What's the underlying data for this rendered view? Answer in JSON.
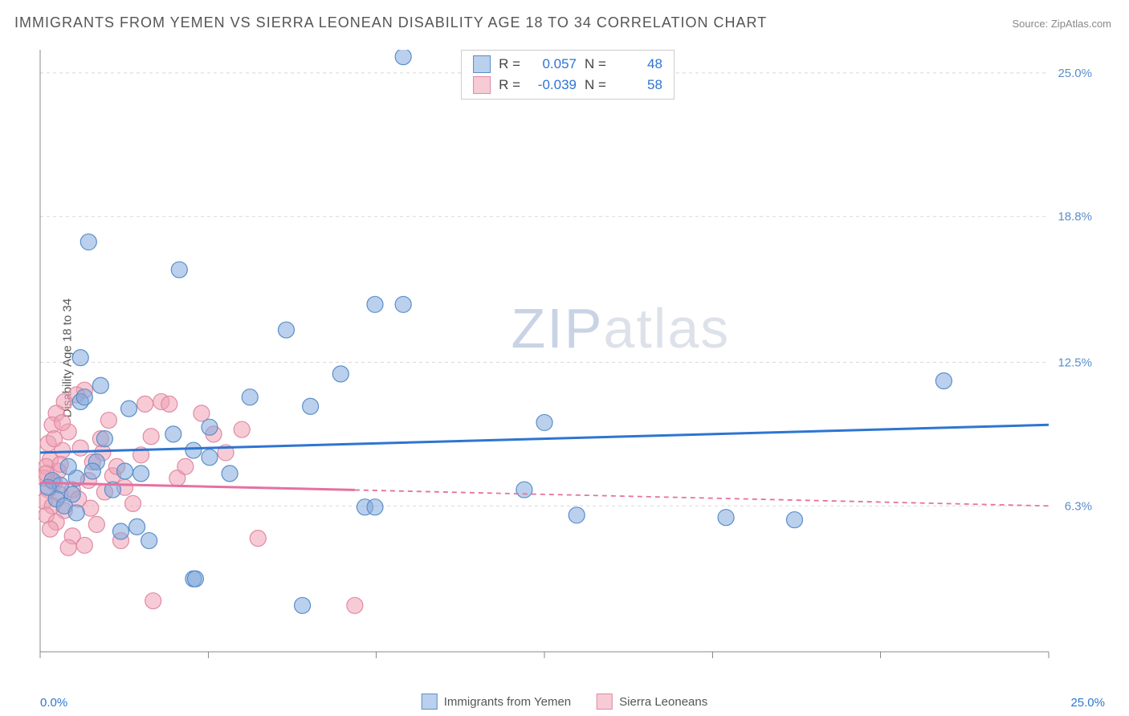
{
  "title": "IMMIGRANTS FROM YEMEN VS SIERRA LEONEAN DISABILITY AGE 18 TO 34 CORRELATION CHART",
  "source": "Source: ZipAtlas.com",
  "watermark_bold": "ZIP",
  "watermark_thin": "atlas",
  "y_axis_label": "Disability Age 18 to 34",
  "x_origin_label": "0.0%",
  "x_max_label": "25.0%",
  "series": {
    "blue": {
      "name": "Immigrants from Yemen",
      "fill_color": "rgba(130,170,220,0.55)",
      "stroke_color": "#5a8ec9",
      "line_color": "#2e75d1",
      "R": "0.057",
      "N": "48",
      "trend": {
        "x1": 0,
        "y1": 8.6,
        "x2": 25,
        "y2": 9.8,
        "solid_until_x": 25
      },
      "points": [
        [
          9.0,
          25.7
        ],
        [
          1.2,
          17.7
        ],
        [
          3.45,
          16.5
        ],
        [
          8.3,
          15.0
        ],
        [
          9.0,
          15.0
        ],
        [
          6.1,
          13.9
        ],
        [
          1.0,
          12.7
        ],
        [
          7.45,
          12.0
        ],
        [
          1.5,
          11.5
        ],
        [
          22.4,
          11.7
        ],
        [
          1.0,
          10.8
        ],
        [
          3.8,
          8.7
        ],
        [
          6.7,
          10.6
        ],
        [
          12.5,
          9.9
        ],
        [
          4.2,
          8.4
        ],
        [
          2.1,
          7.8
        ],
        [
          2.5,
          7.7
        ],
        [
          0.9,
          7.5
        ],
        [
          1.8,
          7.0
        ],
        [
          0.8,
          6.8
        ],
        [
          12.0,
          7.0
        ],
        [
          8.05,
          6.25
        ],
        [
          8.3,
          6.25
        ],
        [
          13.3,
          5.9
        ],
        [
          17.0,
          5.8
        ],
        [
          18.7,
          5.7
        ],
        [
          2.4,
          5.4
        ],
        [
          2.7,
          4.8
        ],
        [
          3.8,
          3.15
        ],
        [
          3.85,
          3.15
        ],
        [
          6.5,
          2.0
        ],
        [
          0.3,
          7.4
        ],
        [
          0.5,
          7.2
        ],
        [
          0.7,
          8.0
        ],
        [
          0.4,
          6.6
        ],
        [
          0.6,
          6.3
        ],
        [
          1.6,
          9.2
        ],
        [
          3.3,
          9.4
        ],
        [
          2.0,
          5.2
        ],
        [
          1.4,
          8.2
        ],
        [
          1.1,
          11.0
        ],
        [
          4.7,
          7.7
        ],
        [
          4.2,
          9.7
        ],
        [
          0.2,
          7.1
        ],
        [
          0.9,
          6.0
        ],
        [
          1.3,
          7.8
        ],
        [
          2.2,
          10.5
        ],
        [
          5.2,
          11.0
        ]
      ]
    },
    "pink": {
      "name": "Sierra Leoneans",
      "fill_color": "rgba(240,160,180,0.55)",
      "stroke_color": "#e08aa3",
      "line_color": "#e571a0",
      "R": "-0.039",
      "N": "58",
      "trend": {
        "x1": 0,
        "y1": 7.3,
        "x2": 25,
        "y2": 6.3,
        "solid_until_x": 7.8
      },
      "points": [
        [
          1.1,
          11.3
        ],
        [
          0.6,
          10.8
        ],
        [
          0.4,
          10.3
        ],
        [
          0.3,
          9.8
        ],
        [
          0.7,
          9.5
        ],
        [
          0.2,
          9.0
        ],
        [
          0.55,
          8.7
        ],
        [
          0.25,
          8.3
        ],
        [
          0.15,
          8.0
        ],
        [
          0.45,
          7.8
        ],
        [
          0.1,
          7.5
        ],
        [
          0.35,
          7.3
        ],
        [
          0.2,
          7.0
        ],
        [
          0.5,
          6.8
        ],
        [
          0.1,
          6.5
        ],
        [
          0.3,
          6.3
        ],
        [
          0.6,
          6.1
        ],
        [
          0.15,
          5.9
        ],
        [
          0.4,
          5.6
        ],
        [
          0.25,
          5.3
        ],
        [
          0.8,
          5.0
        ],
        [
          1.0,
          8.8
        ],
        [
          1.3,
          8.2
        ],
        [
          1.5,
          9.2
        ],
        [
          1.2,
          7.4
        ],
        [
          1.6,
          6.9
        ],
        [
          1.8,
          7.6
        ],
        [
          1.4,
          5.5
        ],
        [
          1.9,
          8.0
        ],
        [
          2.1,
          7.1
        ],
        [
          2.3,
          6.4
        ],
        [
          2.5,
          8.5
        ],
        [
          2.0,
          4.8
        ],
        [
          2.6,
          10.7
        ],
        [
          2.75,
          9.3
        ],
        [
          3.0,
          10.8
        ],
        [
          3.2,
          10.7
        ],
        [
          3.4,
          7.5
        ],
        [
          3.6,
          8.0
        ],
        [
          4.0,
          10.3
        ],
        [
          4.3,
          9.4
        ],
        [
          4.6,
          8.6
        ],
        [
          5.0,
          9.6
        ],
        [
          5.4,
          4.9
        ],
        [
          2.8,
          2.2
        ],
        [
          7.8,
          2.0
        ],
        [
          1.1,
          4.6
        ],
        [
          1.7,
          10.0
        ],
        [
          0.9,
          11.1
        ],
        [
          0.7,
          4.5
        ],
        [
          0.5,
          8.1
        ],
        [
          0.35,
          9.2
        ],
        [
          0.8,
          7.0
        ],
        [
          1.25,
          6.2
        ],
        [
          1.55,
          8.6
        ],
        [
          0.95,
          6.6
        ],
        [
          0.15,
          7.7
        ],
        [
          0.55,
          9.9
        ]
      ]
    }
  },
  "chart": {
    "type": "scatter",
    "background_color": "#ffffff",
    "grid_color": "#d8d8d8",
    "axis_color": "#888888",
    "xlim": [
      0,
      25
    ],
    "ylim": [
      0,
      26
    ],
    "y_ticks": [
      {
        "val": 6.3,
        "label": "6.3%"
      },
      {
        "val": 12.5,
        "label": "12.5%"
      },
      {
        "val": 18.8,
        "label": "18.8%"
      },
      {
        "val": 25.0,
        "label": "25.0%"
      }
    ],
    "x_tick_vals": [
      0,
      4.17,
      8.33,
      12.5,
      16.67,
      20.83,
      25
    ],
    "marker_radius": 10,
    "marker_stroke_width": 1.2,
    "trend_line_width": 3,
    "trend_dash": "6 5",
    "title_fontsize": 18,
    "title_color": "#555555",
    "label_fontsize": 15,
    "stat_value_color": "#2e75d1",
    "x_labels_color": "#2e75d1",
    "y_labels_color": "#5a8ec9"
  }
}
